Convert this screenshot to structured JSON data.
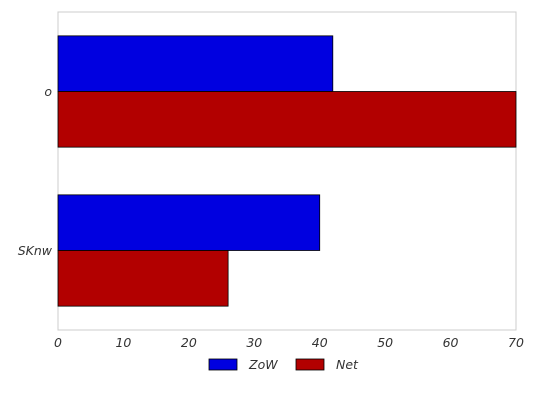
{
  "chart_data": {
    "type": "bar",
    "orientation": "horizontal",
    "categories": [
      "o",
      "SKnw"
    ],
    "series": [
      {
        "name": "ZoW",
        "values": [
          42,
          40
        ],
        "color": "#0000e0"
      },
      {
        "name": "Net",
        "values": [
          70,
          26
        ],
        "color": "#b20000"
      }
    ],
    "xlim": [
      0,
      70
    ],
    "x_ticks": [
      "0",
      "10",
      "20",
      "30",
      "40",
      "50",
      "60",
      "70"
    ],
    "grid": false,
    "legend_position": "bottom-center",
    "title": "",
    "xlabel": "",
    "ylabel": ""
  }
}
